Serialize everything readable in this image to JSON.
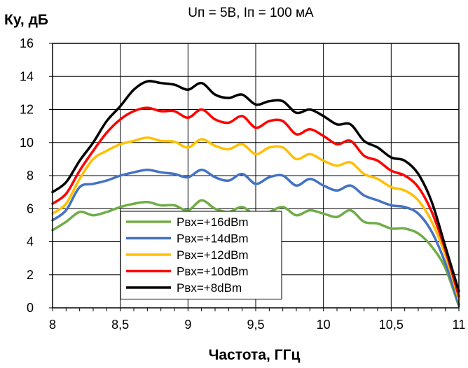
{
  "chart_data": {
    "type": "line",
    "title": "Uп = 5В, Iп = 100 мА",
    "xlabel": "Частота, ГГц",
    "ylabel": "Ку, дБ",
    "xlim": [
      8,
      11
    ],
    "ylim": [
      0,
      16
    ],
    "grid": true,
    "legend_position": "bottom-left",
    "x_ticks": [
      "8",
      "8,5",
      "9",
      "9,5",
      "10",
      "10,5",
      "11"
    ],
    "y_ticks": [
      "0",
      "2",
      "4",
      "6",
      "8",
      "10",
      "12",
      "14",
      "16"
    ],
    "x": [
      8.0,
      8.1,
      8.2,
      8.3,
      8.4,
      8.5,
      8.6,
      8.7,
      8.8,
      8.9,
      9.0,
      9.1,
      9.2,
      9.3,
      9.4,
      9.5,
      9.6,
      9.7,
      9.8,
      9.9,
      10.0,
      10.1,
      10.2,
      10.3,
      10.4,
      10.5,
      10.6,
      10.7,
      10.8,
      10.9,
      11.0
    ],
    "series": [
      {
        "name": "Рвх=+16dBm",
        "color": "#70ad47",
        "values": [
          4.7,
          5.2,
          5.8,
          5.6,
          5.8,
          6.1,
          6.3,
          6.4,
          6.2,
          6.2,
          5.9,
          6.5,
          6.0,
          5.8,
          6.1,
          5.6,
          5.8,
          6.1,
          5.6,
          5.9,
          5.7,
          5.5,
          5.9,
          5.2,
          5.1,
          4.8,
          4.8,
          4.5,
          3.7,
          2.4,
          0.1
        ]
      },
      {
        "name": "Рвх=+14dBm",
        "color": "#4472c4",
        "values": [
          5.3,
          5.9,
          7.3,
          7.5,
          7.7,
          8.0,
          8.2,
          8.35,
          8.2,
          8.1,
          7.9,
          8.35,
          7.9,
          7.7,
          8.1,
          7.5,
          7.9,
          8.0,
          7.4,
          7.8,
          7.4,
          7.1,
          7.4,
          6.8,
          6.5,
          6.2,
          6.1,
          5.7,
          4.6,
          2.7,
          0.2
        ]
      },
      {
        "name": "Рвх=+12dBm",
        "color": "#ffc000",
        "values": [
          5.7,
          6.3,
          7.8,
          9.0,
          9.5,
          9.9,
          10.1,
          10.3,
          10.1,
          10.05,
          9.7,
          10.2,
          9.8,
          9.6,
          9.9,
          9.3,
          9.7,
          9.7,
          9.0,
          9.3,
          8.9,
          8.6,
          8.8,
          8.1,
          7.8,
          7.3,
          7.1,
          6.5,
          5.2,
          3.2,
          0.5
        ]
      },
      {
        "name": "Рвх=+10dBm",
        "color": "#ff0000",
        "values": [
          6.3,
          6.9,
          8.3,
          9.5,
          10.6,
          11.4,
          11.9,
          12.1,
          11.9,
          11.9,
          11.5,
          12.0,
          11.4,
          11.2,
          11.6,
          10.9,
          11.3,
          11.3,
          10.5,
          10.8,
          10.4,
          9.9,
          10.1,
          9.2,
          8.9,
          8.3,
          8.0,
          7.3,
          5.8,
          3.5,
          0.7
        ]
      },
      {
        "name": "Рвх=+8dBm",
        "color": "#000000",
        "values": [
          7.0,
          7.6,
          8.9,
          10.0,
          11.3,
          12.2,
          13.2,
          13.7,
          13.6,
          13.5,
          13.2,
          13.6,
          12.9,
          12.7,
          12.9,
          12.3,
          12.5,
          12.5,
          11.8,
          12.0,
          11.6,
          11.1,
          11.1,
          10.1,
          9.7,
          9.1,
          8.9,
          8.1,
          6.4,
          3.7,
          1.0
        ]
      }
    ]
  }
}
